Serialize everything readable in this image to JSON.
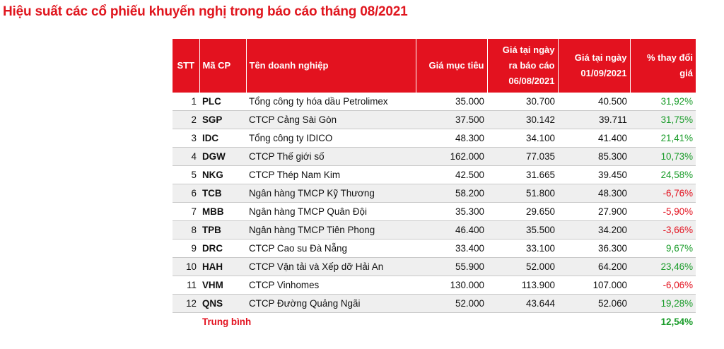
{
  "title": "Hiệu suất các cổ phiếu khuyến nghị trong báo cáo tháng 08/2021",
  "columns": {
    "stt": "STT",
    "ticker": "Mã CP",
    "company": "Tên doanh nghiệp",
    "target_price": "Giá mục tiêu",
    "report_price_line1": "Giá tại ngày",
    "report_price_line2": "ra báo cáo",
    "report_price_line3": "06/08/2021",
    "current_price_line1": "Giá tại ngày",
    "current_price_line2": "01/09/2021",
    "change": "% thay đổi giá"
  },
  "rows": [
    {
      "stt": "1",
      "ticker": "PLC",
      "company": "Tổng công ty hóa dầu Petrolimex",
      "target": "35.000",
      "report_price": "30.700",
      "current_price": "40.500",
      "change": "31,92%",
      "positive": true
    },
    {
      "stt": "2",
      "ticker": "SGP",
      "company": "CTCP Cảng Sài Gòn",
      "target": "37.500",
      "report_price": "30.142",
      "current_price": "39.711",
      "change": "31,75%",
      "positive": true
    },
    {
      "stt": "3",
      "ticker": "IDC",
      "company": "Tổng công ty IDICO",
      "target": "48.300",
      "report_price": "34.100",
      "current_price": "41.400",
      "change": "21,41%",
      "positive": true
    },
    {
      "stt": "4",
      "ticker": "DGW",
      "company": "CTCP Thế giới số",
      "target": "162.000",
      "report_price": "77.035",
      "current_price": "85.300",
      "change": "10,73%",
      "positive": true
    },
    {
      "stt": "5",
      "ticker": "NKG",
      "company": "CTCP Thép Nam Kim",
      "target": "42.500",
      "report_price": "31.665",
      "current_price": "39.450",
      "change": "24,58%",
      "positive": true
    },
    {
      "stt": "6",
      "ticker": "TCB",
      "company": "Ngân hàng TMCP Kỹ Thương",
      "target": "58.200",
      "report_price": "51.800",
      "current_price": "48.300",
      "change": "-6,76%",
      "positive": false
    },
    {
      "stt": "7",
      "ticker": "MBB",
      "company": "Ngân hàng TMCP Quân Đội",
      "target": "35.300",
      "report_price": "29.650",
      "current_price": "27.900",
      "change": "-5,90%",
      "positive": false
    },
    {
      "stt": "8",
      "ticker": "TPB",
      "company": "Ngân hàng TMCP Tiên Phong",
      "target": "46.400",
      "report_price": "35.500",
      "current_price": "34.200",
      "change": "-3,66%",
      "positive": false
    },
    {
      "stt": "9",
      "ticker": "DRC",
      "company": "CTCP Cao su Đà Nẵng",
      "target": "33.400",
      "report_price": "33.100",
      "current_price": "36.300",
      "change": "9,67%",
      "positive": true
    },
    {
      "stt": "10",
      "ticker": "HAH",
      "company": "CTCP Vận tải và Xếp dỡ Hải An",
      "target": "55.900",
      "report_price": "52.000",
      "current_price": "64.200",
      "change": "23,46%",
      "positive": true
    },
    {
      "stt": "11",
      "ticker": "VHM",
      "company": "CTCP Vinhomes",
      "target": "130.000",
      "report_price": "113.900",
      "current_price": "107.000",
      "change": "-6,06%",
      "positive": false
    },
    {
      "stt": "12",
      "ticker": "QNS",
      "company": "CTCP Đường Quảng Ngãi",
      "target": "52.000",
      "report_price": "43.644",
      "current_price": "52.060",
      "change": "19,28%",
      "positive": true
    }
  ],
  "average": {
    "label": "Trung bình",
    "value": "12,54%"
  },
  "colors": {
    "header_bg": "#e3121f",
    "positive": "#1a9c2a",
    "negative": "#e3121f",
    "title": "#e0161e"
  }
}
